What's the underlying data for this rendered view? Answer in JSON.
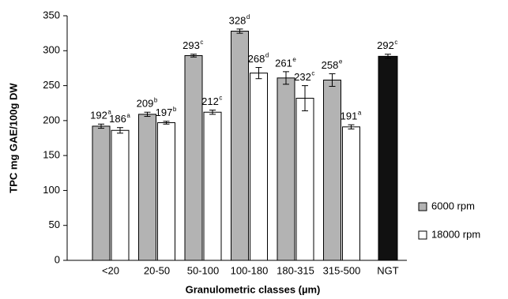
{
  "chart_data": {
    "type": "bar",
    "x_label": "Granulometric classes (µm)",
    "y_label": "TPC mg GAE/100g DW",
    "categories": [
      "<20",
      "20-50",
      "50-100",
      "100-180",
      "180-315",
      "315-500",
      "NGT"
    ],
    "series": [
      {
        "name": "6000 rpm",
        "color": "#b3b3b3",
        "point_colors": [
          null,
          null,
          null,
          null,
          null,
          null,
          "#111111"
        ],
        "values": [
          192,
          209,
          293,
          328,
          261,
          258,
          292
        ],
        "errors": [
          3,
          3,
          2,
          3,
          9,
          9,
          3
        ],
        "letters": [
          "a",
          "b",
          "c",
          "d",
          "e",
          "e",
          "c"
        ]
      },
      {
        "name": "18000 rpm",
        "color": "#ffffff",
        "values": [
          186,
          197,
          212,
          268,
          232,
          191,
          null
        ],
        "errors": [
          4,
          2,
          3,
          8,
          18,
          3,
          null
        ],
        "letters": [
          "a",
          "b",
          "c",
          "d",
          "c",
          "a",
          null
        ]
      }
    ],
    "ylim": [
      0,
      350
    ],
    "yticks": [
      0,
      50,
      100,
      150,
      200,
      250,
      300,
      350
    ],
    "legend": "right",
    "grid": false
  }
}
